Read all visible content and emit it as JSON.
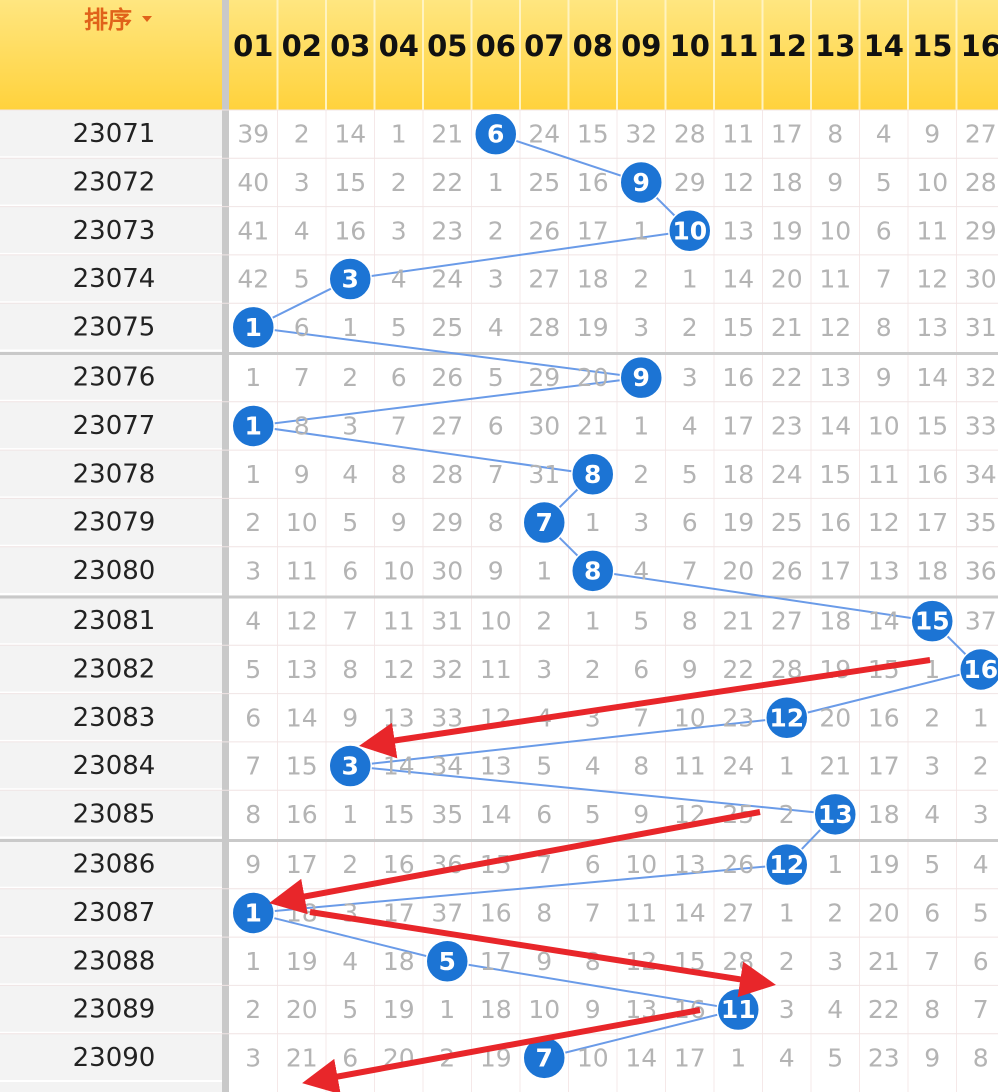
{
  "header": {
    "sort_label": "排序",
    "columns": [
      "01",
      "02",
      "03",
      "04",
      "05",
      "06",
      "07",
      "08",
      "09",
      "10",
      "11",
      "12",
      "13",
      "14",
      "15",
      "16"
    ]
  },
  "rows": [
    {
      "period": "23071",
      "cells": [
        "39",
        "2",
        "14",
        "1",
        "21",
        {
          "text": "6",
          "hit": true
        },
        "24",
        "15",
        "32",
        "28",
        "11",
        "17",
        "8",
        "4",
        "9",
        "27"
      ]
    },
    {
      "period": "23072",
      "cells": [
        "40",
        "3",
        "15",
        "2",
        "22",
        "1",
        "25",
        "16",
        {
          "text": "9",
          "hit": true
        },
        "29",
        "12",
        "18",
        "9",
        "5",
        "10",
        "28"
      ]
    },
    {
      "period": "23073",
      "cells": [
        "41",
        "4",
        "16",
        "3",
        "23",
        "2",
        "26",
        "17",
        "1",
        {
          "text": "10",
          "hit": true
        },
        "13",
        "19",
        "10",
        "6",
        "11",
        "29"
      ]
    },
    {
      "period": "23074",
      "cells": [
        "42",
        "5",
        {
          "text": "3",
          "hit": true
        },
        "4",
        "24",
        "3",
        "27",
        "18",
        "2",
        "1",
        "14",
        "20",
        "11",
        "7",
        "12",
        "30"
      ]
    },
    {
      "period": "23075",
      "cells": [
        {
          "text": "1",
          "hit": true
        },
        "6",
        "1",
        "5",
        "25",
        "4",
        "28",
        "19",
        "3",
        "2",
        "15",
        "21",
        "12",
        "8",
        "13",
        "31"
      ]
    },
    {
      "period": "23076",
      "cells": [
        "1",
        "7",
        "2",
        "6",
        "26",
        "5",
        "29",
        "20",
        {
          "text": "9",
          "hit": true
        },
        "3",
        "16",
        "22",
        "13",
        "9",
        "14",
        "32"
      ]
    },
    {
      "period": "23077",
      "cells": [
        {
          "text": "1",
          "hit": true
        },
        "8",
        "3",
        "7",
        "27",
        "6",
        "30",
        "21",
        "1",
        "4",
        "17",
        "23",
        "14",
        "10",
        "15",
        "33"
      ]
    },
    {
      "period": "23078",
      "cells": [
        "1",
        "9",
        "4",
        "8",
        "28",
        "7",
        "31",
        {
          "text": "8",
          "hit": true
        },
        "2",
        "5",
        "18",
        "24",
        "15",
        "11",
        "16",
        "34"
      ]
    },
    {
      "period": "23079",
      "cells": [
        "2",
        "10",
        "5",
        "9",
        "29",
        "8",
        {
          "text": "7",
          "hit": true
        },
        "1",
        "3",
        "6",
        "19",
        "25",
        "16",
        "12",
        "17",
        "35"
      ]
    },
    {
      "period": "23080",
      "cells": [
        "3",
        "11",
        "6",
        "10",
        "30",
        "9",
        "1",
        {
          "text": "8",
          "hit": true
        },
        "4",
        "7",
        "20",
        "26",
        "17",
        "13",
        "18",
        "36"
      ]
    },
    {
      "period": "23081",
      "cells": [
        "4",
        "12",
        "7",
        "11",
        "31",
        "10",
        "2",
        "1",
        "5",
        "8",
        "21",
        "27",
        "18",
        "14",
        {
          "text": "15",
          "hit": true
        },
        "37"
      ]
    },
    {
      "period": "23082",
      "cells": [
        "5",
        "13",
        "8",
        "12",
        "32",
        "11",
        "3",
        "2",
        "6",
        "9",
        "22",
        "28",
        "19",
        "15",
        "1",
        {
          "text": "16",
          "hit": true
        }
      ]
    },
    {
      "period": "23083",
      "cells": [
        "6",
        "14",
        "9",
        "13",
        "33",
        "12",
        "4",
        "3",
        "7",
        "10",
        "23",
        {
          "text": "12",
          "hit": true
        },
        "20",
        "16",
        "2",
        "1"
      ]
    },
    {
      "period": "23084",
      "cells": [
        "7",
        "15",
        {
          "text": "3",
          "hit": true
        },
        "14",
        "34",
        "13",
        "5",
        "4",
        "8",
        "11",
        "24",
        "1",
        "21",
        "17",
        "3",
        "2"
      ]
    },
    {
      "period": "23085",
      "cells": [
        "8",
        "16",
        "1",
        "15",
        "35",
        "14",
        "6",
        "5",
        "9",
        "12",
        "25",
        "2",
        {
          "text": "13",
          "hit": true
        },
        "18",
        "4",
        "3"
      ]
    },
    {
      "period": "23086",
      "cells": [
        "9",
        "17",
        "2",
        "16",
        "36",
        "15",
        "7",
        "6",
        "10",
        "13",
        "26",
        {
          "text": "12",
          "hit": true
        },
        "1",
        "19",
        "5",
        "4"
      ]
    },
    {
      "period": "23087",
      "cells": [
        {
          "text": "1",
          "hit": true
        },
        "18",
        "3",
        "17",
        "37",
        "16",
        "8",
        "7",
        "11",
        "14",
        "27",
        "1",
        "2",
        "20",
        "6",
        "5"
      ]
    },
    {
      "period": "23088",
      "cells": [
        "1",
        "19",
        "4",
        "18",
        {
          "text": "5",
          "hit": true
        },
        "17",
        "9",
        "8",
        "12",
        "15",
        "28",
        "2",
        "3",
        "21",
        "7",
        "6"
      ]
    },
    {
      "period": "23089",
      "cells": [
        "2",
        "20",
        "5",
        "19",
        "1",
        "18",
        "10",
        "9",
        "13",
        "16",
        {
          "text": "11",
          "hit": true
        },
        "3",
        "4",
        "22",
        "8",
        "7"
      ]
    },
    {
      "period": "23090",
      "cells": [
        "3",
        "21",
        "6",
        "20",
        "2",
        "19",
        {
          "text": "7",
          "hit": true
        },
        "10",
        "14",
        "17",
        "1",
        "4",
        "5",
        "23",
        "9",
        "8"
      ]
    }
  ]
}
